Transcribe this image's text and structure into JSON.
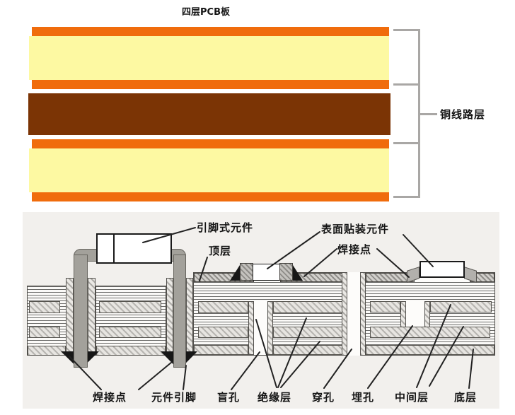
{
  "top_diagram": {
    "title": "四层PCB板",
    "bracket_label": "铜线路层",
    "layers": [
      "copper",
      "substrate",
      "copper",
      "core",
      "copper",
      "substrate",
      "copper"
    ],
    "colors": {
      "copper": "#f06c0c",
      "substrate": "#fdf9a2",
      "core": "#7b3405"
    }
  },
  "bottom_diagram": {
    "labels": {
      "leaded_component": "引脚式元件",
      "top_layer": "顶层",
      "smd_component": "表面贴装元件",
      "solder_joint_top": "焊接点",
      "solder_joint_bottom": "焊接点",
      "component_lead": "元件引脚",
      "blind_via": "盲孔",
      "insulation_layer": "绝缘层",
      "through_hole": "穿孔",
      "buried_via": "埋孔",
      "middle_layer": "中间层",
      "bottom_layer": "底层"
    }
  }
}
